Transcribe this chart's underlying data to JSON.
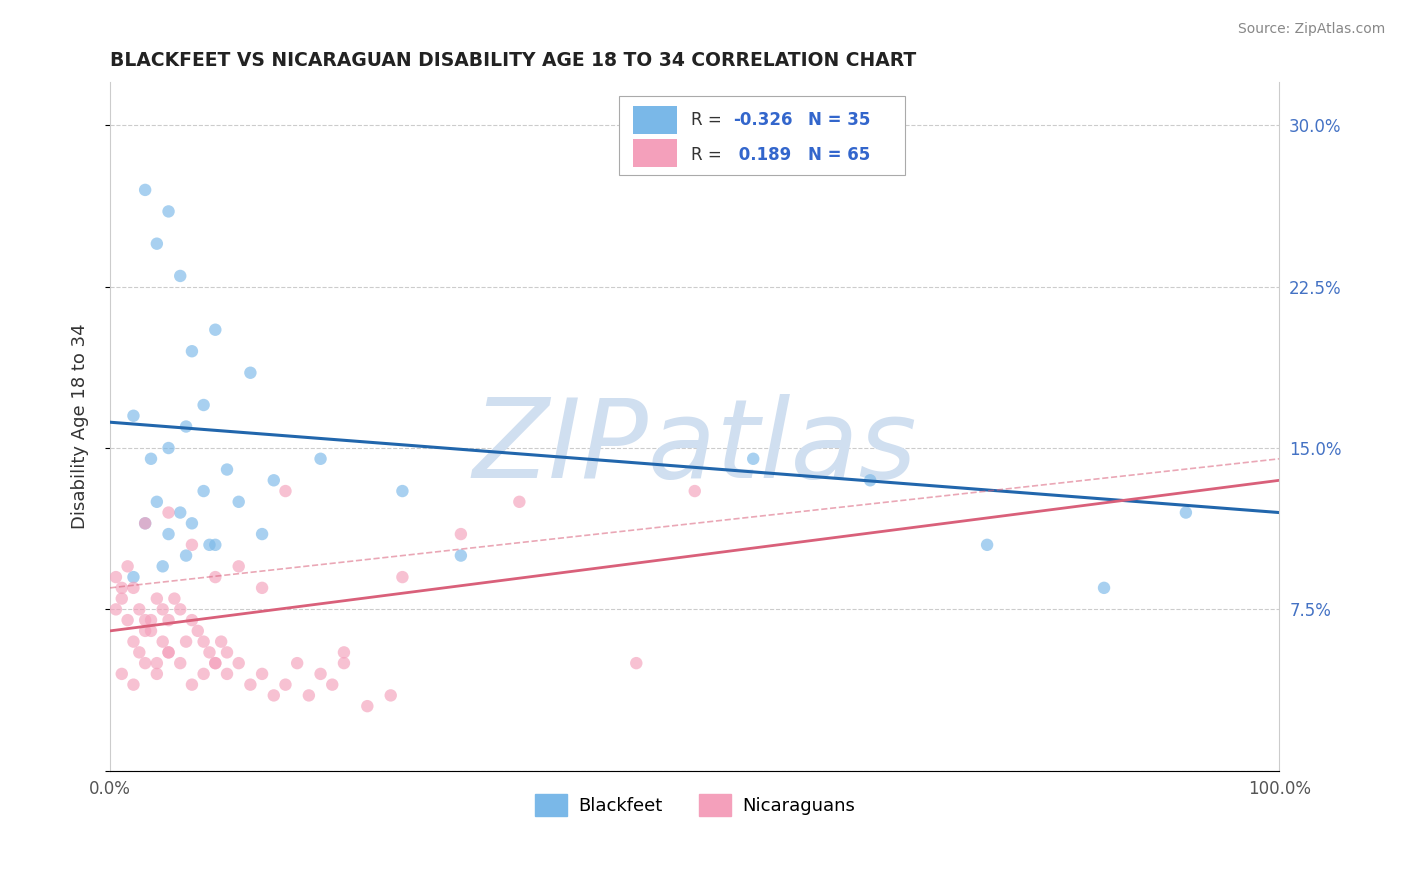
{
  "title": "BLACKFEET VS NICARAGUAN DISABILITY AGE 18 TO 34 CORRELATION CHART",
  "source": "Source: ZipAtlas.com",
  "ylabel": "Disability Age 18 to 34",
  "xlim": [
    0,
    100
  ],
  "ylim": [
    0,
    32
  ],
  "yticks": [
    0,
    7.5,
    15.0,
    22.5,
    30.0
  ],
  "ytick_labels": [
    "",
    "7.5%",
    "15.0%",
    "22.5%",
    "30.0%"
  ],
  "xticks": [
    0,
    25,
    50,
    75,
    100
  ],
  "xtick_labels": [
    "0.0%",
    "",
    "",
    "",
    "100.0%"
  ],
  "blue_color": "#7ab8e8",
  "pink_color": "#f4a0bb",
  "blue_line_color": "#2166ac",
  "pink_line_color": "#d9607a",
  "pink_dash_color": "#d9607a",
  "watermark_color": "#d0dff0",
  "watermark": "ZIPatlas",
  "background_color": "#ffffff",
  "grid_color": "#cccccc",
  "blackfeet_x": [
    3.0,
    5.0,
    7.0,
    9.0,
    4.0,
    6.0,
    2.0,
    8.0,
    5.0,
    3.5,
    6.5,
    10.0,
    12.0,
    14.0,
    8.0,
    4.0,
    6.0,
    3.0,
    5.0,
    7.0,
    9.0,
    11.0,
    2.0,
    4.5,
    6.5,
    8.5,
    13.0,
    18.0,
    25.0,
    30.0,
    55.0,
    65.0,
    75.0,
    85.0,
    92.0
  ],
  "blackfeet_y": [
    27.0,
    26.0,
    19.5,
    20.5,
    24.5,
    23.0,
    16.5,
    17.0,
    15.0,
    14.5,
    16.0,
    14.0,
    18.5,
    13.5,
    13.0,
    12.5,
    12.0,
    11.5,
    11.0,
    11.5,
    10.5,
    12.5,
    9.0,
    9.5,
    10.0,
    10.5,
    11.0,
    14.5,
    13.0,
    10.0,
    14.5,
    13.5,
    10.5,
    8.5,
    12.0
  ],
  "nicaraguan_x": [
    0.5,
    1.0,
    1.5,
    2.0,
    2.5,
    3.0,
    3.5,
    4.0,
    4.5,
    5.0,
    0.5,
    1.0,
    1.5,
    2.0,
    2.5,
    3.0,
    3.5,
    4.0,
    4.5,
    5.0,
    5.5,
    6.0,
    6.5,
    7.0,
    7.5,
    8.0,
    8.5,
    9.0,
    9.5,
    10.0,
    1.0,
    2.0,
    3.0,
    4.0,
    5.0,
    6.0,
    7.0,
    8.0,
    9.0,
    10.0,
    11.0,
    12.0,
    13.0,
    14.0,
    15.0,
    16.0,
    17.0,
    18.0,
    19.0,
    20.0,
    3.0,
    5.0,
    7.0,
    9.0,
    11.0,
    13.0,
    15.0,
    25.0,
    30.0,
    35.0,
    20.0,
    22.0,
    24.0,
    50.0,
    45.0
  ],
  "nicaraguan_y": [
    7.5,
    8.0,
    7.0,
    8.5,
    7.5,
    6.5,
    7.0,
    8.0,
    7.5,
    7.0,
    9.0,
    8.5,
    9.5,
    6.0,
    5.5,
    7.0,
    6.5,
    5.0,
    6.0,
    5.5,
    8.0,
    7.5,
    6.0,
    7.0,
    6.5,
    6.0,
    5.5,
    5.0,
    6.0,
    5.5,
    4.5,
    4.0,
    5.0,
    4.5,
    5.5,
    5.0,
    4.0,
    4.5,
    5.0,
    4.5,
    5.0,
    4.0,
    4.5,
    3.5,
    4.0,
    5.0,
    3.5,
    4.5,
    4.0,
    5.0,
    11.5,
    12.0,
    10.5,
    9.0,
    9.5,
    8.5,
    13.0,
    9.0,
    11.0,
    12.5,
    5.5,
    3.0,
    3.5,
    13.0,
    5.0
  ],
  "blue_trend_x0": 0,
  "blue_trend_y0": 16.2,
  "blue_trend_x1": 100,
  "blue_trend_y1": 12.0,
  "pink_trend_x0": 0,
  "pink_trend_y0": 6.5,
  "pink_trend_x1": 100,
  "pink_trend_y1": 13.5,
  "pink_dash_x0": 0,
  "pink_dash_y0": 8.5,
  "pink_dash_x1": 100,
  "pink_dash_y1": 14.5
}
